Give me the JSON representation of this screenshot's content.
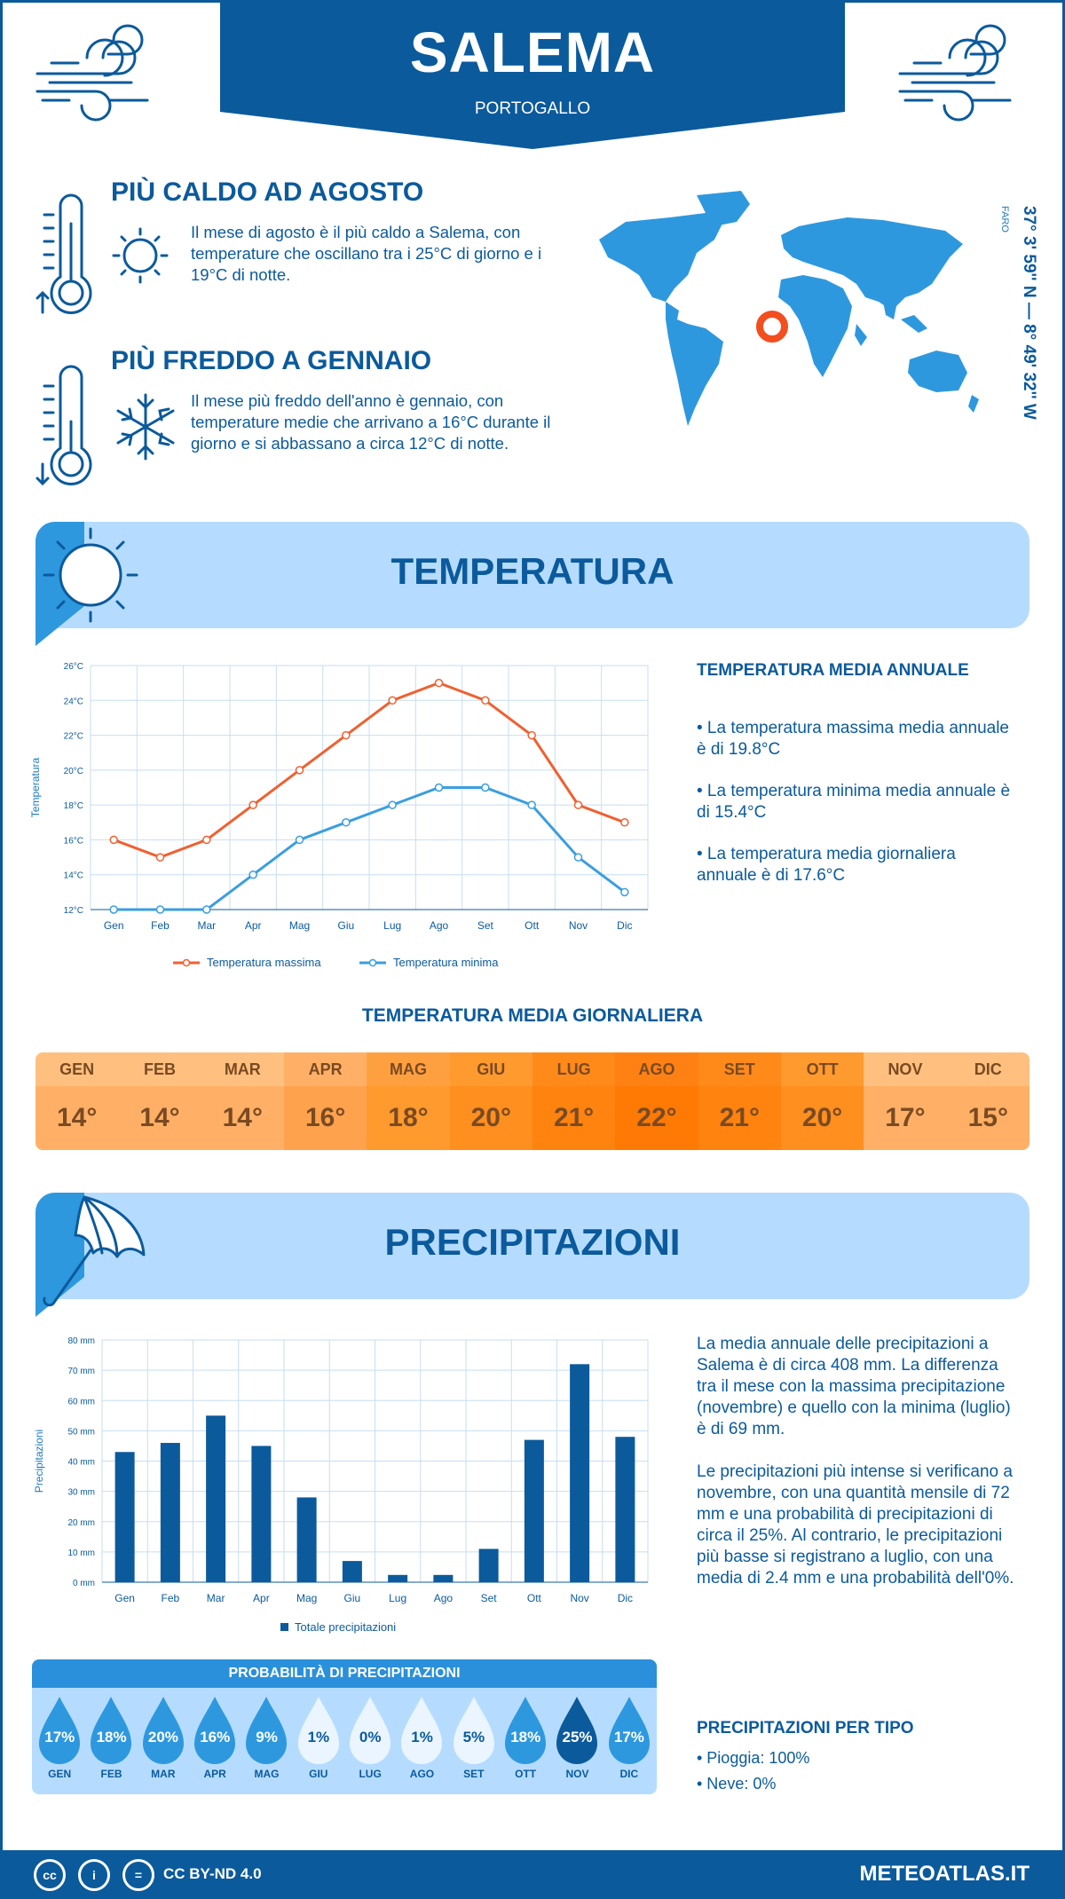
{
  "header": {
    "city": "SALEMA",
    "country": "PORTOGALLO"
  },
  "coords": {
    "latlon": "37° 3' 59'' N — 8° 49' 32'' W",
    "region": "FARO"
  },
  "warmest": {
    "title": "PIÙ CALDO AD AGOSTO",
    "text": "Il mese di agosto è il più caldo a Salema, con temperature che oscillano tra i 25°C di giorno e i 19°C di notte."
  },
  "coldest": {
    "title": "PIÙ FREDDO A GENNAIO",
    "text": "Il mese più freddo dell'anno è gennaio, con temperature medie che arrivano a 16°C durante il giorno e si abbassano a circa 12°C di notte."
  },
  "temperature_section": {
    "title": "TEMPERATURA",
    "side_title": "TEMPERATURA MEDIA ANNUALE",
    "bullets": [
      "• La temperatura massima media annuale è di 19.8°C",
      "• La temperatura minima media annuale è di 15.4°C",
      "• La temperatura media giornaliera annuale è di 17.6°C"
    ]
  },
  "daily_mean": {
    "title": "TEMPERATURA MEDIA GIORNALIERA",
    "months": [
      "GEN",
      "FEB",
      "MAR",
      "APR",
      "MAG",
      "GIU",
      "LUG",
      "AGO",
      "SET",
      "OTT",
      "NOV",
      "DIC"
    ],
    "values": [
      "14°",
      "14°",
      "14°",
      "16°",
      "18°",
      "20°",
      "21°",
      "22°",
      "21°",
      "20°",
      "17°",
      "15°"
    ],
    "colors": {
      "head": [
        "#ffc07f",
        "#ffc07f",
        "#ffc07f",
        "#ffb066",
        "#ffa040",
        "#ff9a2e",
        "#ff8a1a",
        "#ff8114",
        "#ff8a1a",
        "#ff9a2e",
        "#ffc07f",
        "#ffc07f"
      ],
      "body": [
        "#ffb066",
        "#ffb066",
        "#ffb066",
        "#ffa24d",
        "#ff9a2e",
        "#ff8f1f",
        "#ff830f",
        "#ff7a05",
        "#ff830f",
        "#ff8f1f",
        "#ffb066",
        "#ffb066"
      ]
    }
  },
  "precip_section": {
    "title": "PRECIPITAZIONI",
    "para1": "La media annuale delle precipitazioni a Salema è di circa 408 mm. La differenza tra il mese con la massima precipitazione (novembre) e quello con la minima (luglio) è di 69 mm.",
    "para2": "Le precipitazioni più intense si verificano a novembre, con una quantità mensile di 72 mm e una probabilità di precipitazioni di circa il 25%. Al contrario, le precipitazioni più basse si registrano a luglio, con una media di 2.4 mm e una probabilità dell'0%.",
    "type_title": "PRECIPITAZIONI PER TIPO",
    "types": [
      "• Pioggia: 100%",
      "• Neve: 0%"
    ]
  },
  "probability": {
    "title": "PROBABILITÀ DI PRECIPITAZIONI",
    "months": [
      "GEN",
      "FEB",
      "MAR",
      "APR",
      "MAG",
      "GIU",
      "LUG",
      "AGO",
      "SET",
      "OTT",
      "NOV",
      "DIC"
    ],
    "values": [
      "17%",
      "18%",
      "20%",
      "16%",
      "9%",
      "1%",
      "0%",
      "1%",
      "5%",
      "18%",
      "25%",
      "17%"
    ],
    "colors": [
      "#2e98df",
      "#2e98df",
      "#2e98df",
      "#2e98df",
      "#2e98df",
      "#eaf5ff",
      "#eaf5ff",
      "#eaf5ff",
      "#eaf5ff",
      "#2e98df",
      "#0b5a9c",
      "#2e98df"
    ]
  },
  "footer": {
    "license": "CC BY-ND 4.0",
    "site": "METEOATLAS.IT"
  },
  "chart_data": [
    {
      "type": "line",
      "ylabel": "Temperatura",
      "categories": [
        "Gen",
        "Feb",
        "Mar",
        "Apr",
        "Mag",
        "Giu",
        "Lug",
        "Ago",
        "Set",
        "Ott",
        "Nov",
        "Dic"
      ],
      "yticks": [
        "12°C",
        "14°C",
        "16°C",
        "18°C",
        "20°C",
        "22°C",
        "24°C",
        "26°C"
      ],
      "ylim": [
        12,
        26
      ],
      "grid": true,
      "legend": "bottom",
      "series": [
        {
          "name": "Temperatura massima",
          "color": "#f06030",
          "values": [
            16,
            15,
            16,
            18,
            20,
            22,
            24,
            25,
            24,
            22,
            18,
            17
          ]
        },
        {
          "name": "Temperatura minima",
          "color": "#3a9ee0",
          "values": [
            12,
            12,
            12,
            14,
            16,
            17,
            18,
            19,
            19,
            18,
            15,
            13
          ]
        }
      ]
    },
    {
      "type": "bar",
      "ylabel": "Precipitazioni",
      "categories": [
        "Gen",
        "Feb",
        "Mar",
        "Apr",
        "Mag",
        "Giu",
        "Lug",
        "Ago",
        "Set",
        "Ott",
        "Nov",
        "Dic"
      ],
      "yticks": [
        "0 mm",
        "10 mm",
        "20 mm",
        "30 mm",
        "40 mm",
        "50 mm",
        "60 mm",
        "70 mm",
        "80 mm"
      ],
      "ylim": [
        0,
        80
      ],
      "grid": true,
      "legend": "bottom",
      "series": [
        {
          "name": "Totale precipitazioni",
          "color": "#0b5a9c",
          "values": [
            43,
            46,
            55,
            45,
            28,
            7,
            2.4,
            2.4,
            11,
            47,
            72,
            48
          ]
        }
      ]
    }
  ]
}
